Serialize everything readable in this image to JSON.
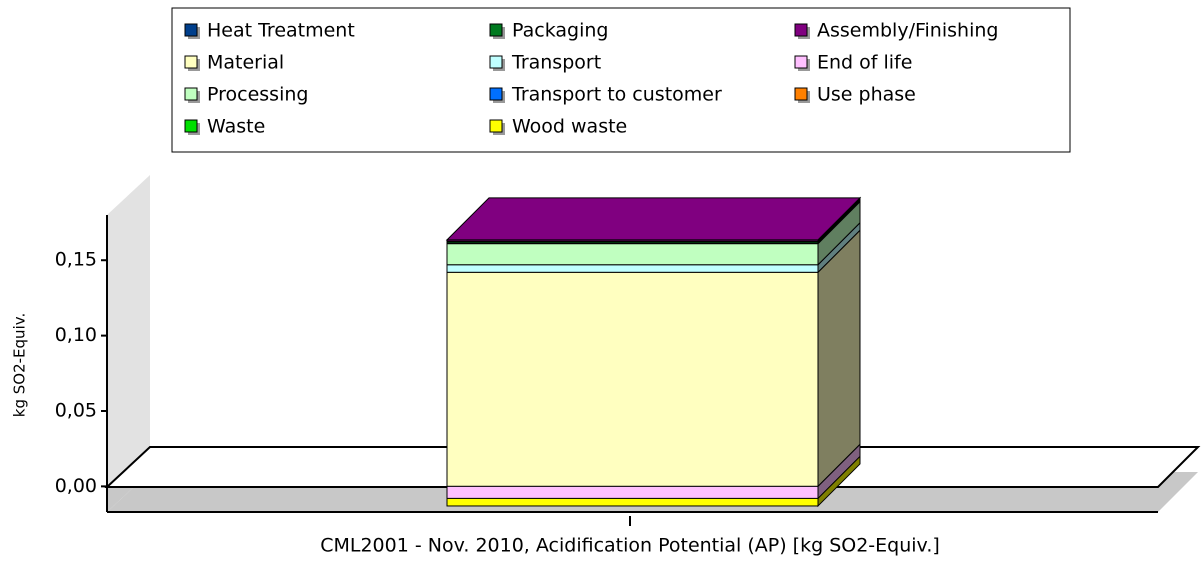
{
  "chart_data": {
    "type": "bar",
    "stacked": true,
    "y_label": "kg SO2-Equiv.",
    "categories": [
      "CML2001 - Nov. 2010, Acidification Potential (AP) [kg SO2-Equiv.]"
    ],
    "series": [
      {
        "name": "Heat Treatment",
        "color": "#003f8c",
        "values": [
          0.0005
        ]
      },
      {
        "name": "Packaging",
        "color": "#007a1f",
        "values": [
          0.001
        ]
      },
      {
        "name": "Assembly/Finishing",
        "color": "#800080",
        "values": [
          0.001
        ]
      },
      {
        "name": "Material",
        "color": "#ffffc0",
        "values": [
          0.142
        ]
      },
      {
        "name": "Transport",
        "color": "#c0ffff",
        "values": [
          0.005
        ]
      },
      {
        "name": "End of life",
        "color": "#ffc0ff",
        "values": [
          -0.008
        ]
      },
      {
        "name": "Processing",
        "color": "#c0ffc0",
        "values": [
          0.014
        ]
      },
      {
        "name": "Transport to customer",
        "color": "#0070ff",
        "values": [
          0
        ]
      },
      {
        "name": "Use phase",
        "color": "#ff8000",
        "values": [
          0
        ]
      },
      {
        "name": "Waste",
        "color": "#00e000",
        "values": [
          0
        ]
      },
      {
        "name": "Wood waste",
        "color": "#ffff00",
        "values": [
          -0.005
        ]
      }
    ],
    "ylim": [
      -0.017,
      0.18
    ],
    "yticks": [
      {
        "value": 0,
        "label": "0,00"
      },
      {
        "value": 0.05,
        "label": "0,05"
      },
      {
        "value": 0.1,
        "label": "0,10"
      },
      {
        "value": 0.15,
        "label": "0,15"
      }
    ],
    "legend": "top"
  }
}
